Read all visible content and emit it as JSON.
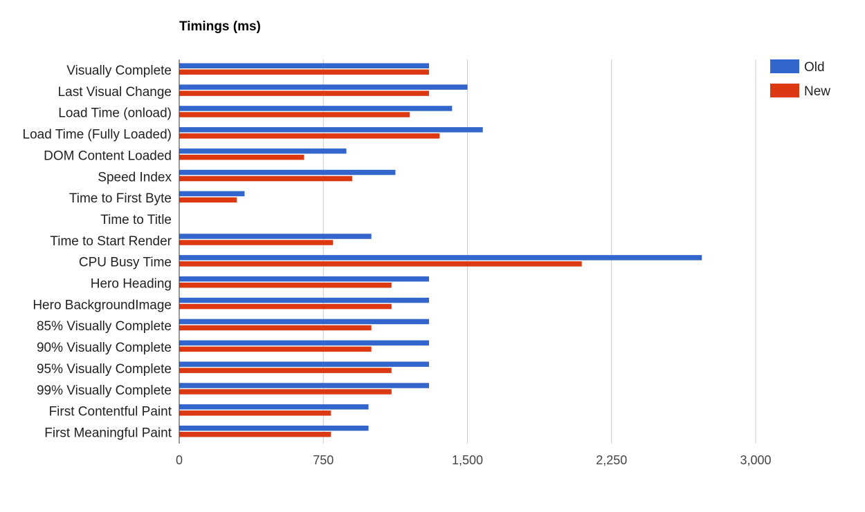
{
  "chart_data": {
    "type": "bar",
    "orientation": "horizontal",
    "title": "Timings (ms)",
    "xlabel": "",
    "ylabel": "",
    "xlim": [
      0,
      3000
    ],
    "ticks": [
      0,
      750,
      1500,
      2250,
      3000
    ],
    "tick_labels": [
      "0",
      "750",
      "1,500",
      "2,250",
      "3,000"
    ],
    "grid": true,
    "legend_position": "top-right",
    "categories": [
      "Visually Complete",
      "Last Visual Change",
      "Load Time (onload)",
      "Load Time (Fully Loaded)",
      "DOM Content Loaded",
      "Speed Index",
      "Time to First Byte",
      "Time to Title",
      "Time to Start Render",
      "CPU Busy Time",
      "Hero Heading",
      "Hero BackgroundImage",
      "85% Visually Complete",
      "90% Visually Complete",
      "95% Visually Complete",
      "99% Visually Complete",
      "First Contentful Paint",
      "First Meaningful Paint"
    ],
    "series": [
      {
        "name": "Old",
        "color": "#3366cc",
        "values": [
          1300,
          1500,
          1420,
          1580,
          870,
          1125,
          340,
          0,
          1000,
          2720,
          1300,
          1300,
          1300,
          1300,
          1300,
          1300,
          985,
          985
        ]
      },
      {
        "name": "New",
        "color": "#dc3912",
        "values": [
          1300,
          1300,
          1200,
          1355,
          650,
          900,
          300,
          0,
          800,
          2095,
          1105,
          1105,
          1000,
          1000,
          1105,
          1105,
          790,
          790
        ]
      }
    ]
  }
}
